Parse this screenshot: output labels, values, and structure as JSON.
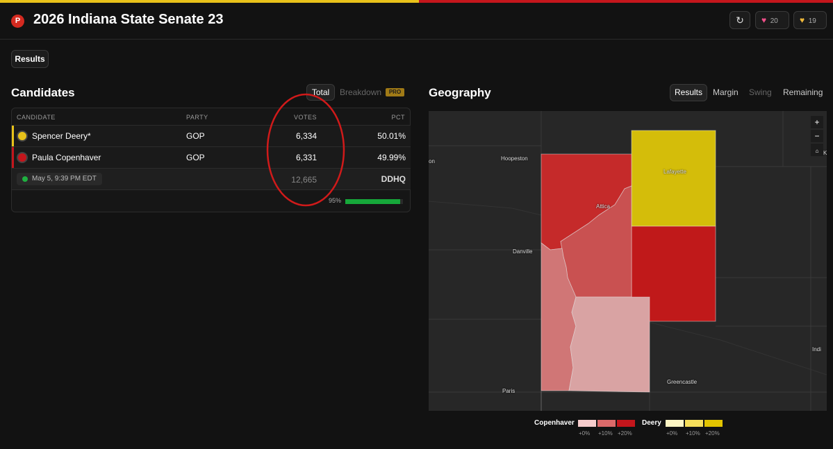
{
  "header": {
    "badge": "P",
    "title": "2026 Indiana State Senate 23",
    "likes": "20",
    "favorites": "19"
  },
  "tabs": [
    "Results"
  ],
  "candidates": {
    "title": "Candidates",
    "views": [
      "Total",
      "Breakdown"
    ],
    "pro": "PRO",
    "columns": [
      "CANDIDATE",
      "PARTY",
      "VOTES",
      "PCT"
    ],
    "rows": [
      [
        "Spencer Deery*",
        "GOP",
        "6,334",
        "50.01%"
      ],
      [
        "Paula Copenhaver",
        "GOP",
        "6,331",
        "49.99%"
      ]
    ],
    "updated": "May 5, 9:39 PM EDT",
    "total": "12,665",
    "source": "DDHQ",
    "reporting": "95%"
  },
  "geography": {
    "title": "Geography",
    "views": [
      "Results",
      "Margin",
      "Swing",
      "Remaining"
    ],
    "map_labels": [
      "on",
      "Hoopeston",
      "Lafayette",
      "Attica",
      "Danville",
      "Indi",
      "Greencastle",
      "Paris",
      "K"
    ],
    "legend": [
      {
        "name": "Copenhaver",
        "steps": [
          "+0%",
          "+10%",
          "+20%"
        ]
      },
      {
        "name": "Deery",
        "steps": [
          "+0%",
          "+10%",
          "+20%"
        ]
      }
    ]
  }
}
